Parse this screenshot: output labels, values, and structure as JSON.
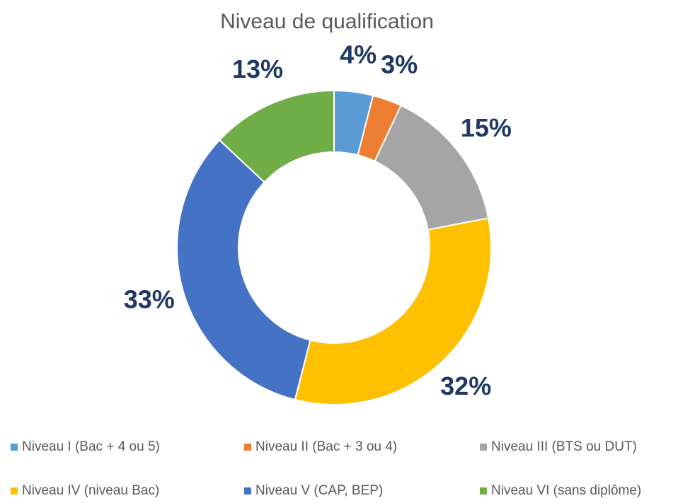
{
  "chart_data": {
    "type": "donut",
    "title": "Niveau de qualification",
    "categories": [
      "Niveau I (Bac + 4 ou 5)",
      "Niveau II (Bac + 3 ou 4)",
      "Niveau III (BTS ou DUT)",
      "Niveau IV (niveau Bac)",
      "Niveau V (CAP, BEP)",
      "Niveau VI (sans diplôme)"
    ],
    "values": [
      4,
      3,
      15,
      32,
      33,
      13
    ],
    "value_labels": [
      "4%",
      "3%",
      "15%",
      "32%",
      "33%",
      "13%"
    ],
    "colors": [
      "#5b9bd5",
      "#ed7d31",
      "#a5a5a5",
      "#ffc000",
      "#4472c4",
      "#70ad47"
    ],
    "legend": "bottom"
  }
}
